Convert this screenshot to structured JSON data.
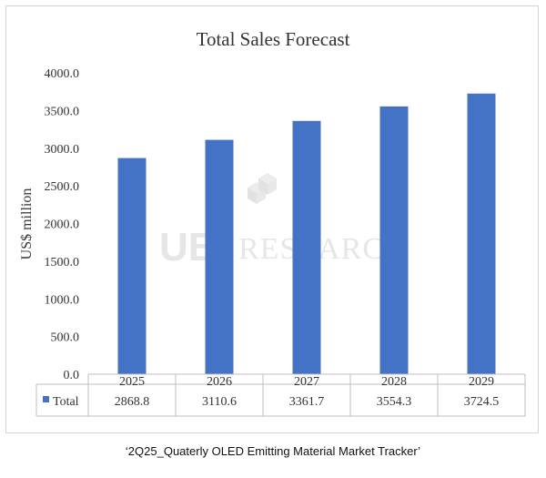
{
  "chart_data": {
    "type": "bar",
    "title": "Total Sales Forecast",
    "ylabel": "US$ million",
    "xlabel": "",
    "categories": [
      "2025",
      "2026",
      "2027",
      "2028",
      "2029"
    ],
    "series": [
      {
        "name": "Total",
        "values": [
          2868.8,
          3110.6,
          3361.7,
          3554.3,
          3724.5
        ],
        "color": "#4472c4"
      }
    ],
    "value_labels": [
      "2868.8",
      "3110.6",
      "3361.7",
      "3554.3",
      "3724.5"
    ],
    "ylim": [
      0,
      4000
    ],
    "yticks": [
      0,
      500,
      1000,
      1500,
      2000,
      2500,
      3000,
      3500,
      4000
    ],
    "ytick_labels": [
      "0.0",
      "500.0",
      "1000.0",
      "1500.0",
      "2000.0",
      "2500.0",
      "3000.0",
      "3500.0",
      "4000.0"
    ],
    "grid": false,
    "legend": "data-table",
    "data_table": true
  },
  "watermark": {
    "logo_text": "UBI",
    "text": "RESEARCH"
  },
  "caption": "‘2Q25_Quaterly OLED Emitting Material Market Tracker’"
}
